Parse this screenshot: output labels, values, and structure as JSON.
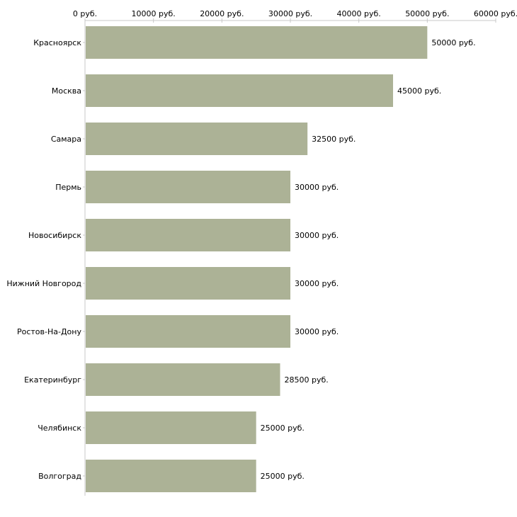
{
  "chart_data": {
    "type": "bar",
    "orientation": "horizontal",
    "title": "",
    "xlabel": "",
    "ylabel": "",
    "xlim": [
      0,
      60000
    ],
    "tick_values": [
      0,
      10000,
      20000,
      30000,
      40000,
      50000,
      60000
    ],
    "tick_labels": [
      "0 руб.",
      "10000 руб.",
      "20000 руб.",
      "30000 руб.",
      "40000 руб.",
      "50000 руб.",
      "60000 руб."
    ],
    "categories": [
      "Красноярск",
      "Москва",
      "Самара",
      "Пермь",
      "Новосибирск",
      "Нижний Новгород",
      "Ростов-На-Дону",
      "Екатеринбург",
      "Челябинск",
      "Волгоград"
    ],
    "values": [
      50000,
      45000,
      32500,
      30000,
      30000,
      30000,
      30000,
      28500,
      25000,
      25000
    ],
    "value_labels": [
      "50000 руб.",
      "45000 руб.",
      "32500 руб.",
      "30000 руб.",
      "30000 руб.",
      "30000 руб.",
      "30000 руб.",
      "28500 руб.",
      "25000 руб.",
      "25000 руб."
    ],
    "bar_color": "#acb296",
    "axis_color": "#c8c8c8"
  }
}
